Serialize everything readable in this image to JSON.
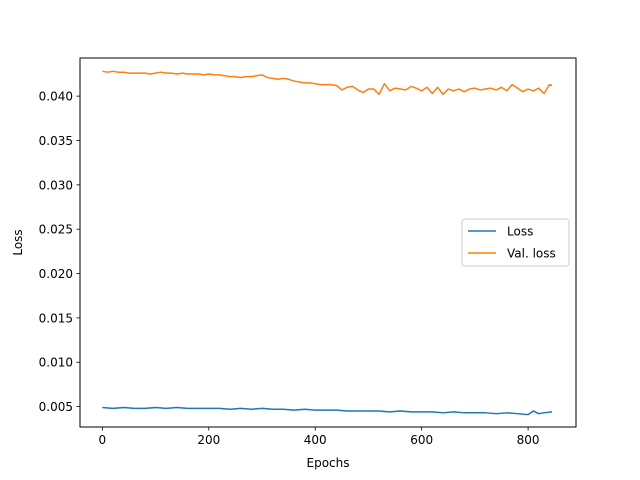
{
  "chart_data": {
    "type": "line",
    "title": "",
    "xlabel": "Epochs",
    "ylabel": "Loss",
    "xlim": [
      -42,
      890
    ],
    "ylim": [
      0.0027,
      0.0443
    ],
    "xticks": [
      0,
      200,
      400,
      600,
      800
    ],
    "xtick_labels": [
      "0",
      "200",
      "400",
      "600",
      "800"
    ],
    "yticks": [
      0.005,
      0.01,
      0.015,
      0.02,
      0.025,
      0.03,
      0.035,
      0.04
    ],
    "ytick_labels": [
      "0.005",
      "0.010",
      "0.015",
      "0.020",
      "0.025",
      "0.030",
      "0.035",
      "0.040"
    ],
    "grid": false,
    "legend_position": "center-right",
    "series": [
      {
        "name": "Loss",
        "color": "#1f77b4",
        "x": [
          0,
          20,
          40,
          60,
          80,
          100,
          120,
          140,
          160,
          180,
          200,
          220,
          240,
          260,
          280,
          300,
          320,
          340,
          360,
          380,
          400,
          420,
          440,
          460,
          480,
          500,
          520,
          540,
          560,
          580,
          600,
          620,
          640,
          660,
          680,
          700,
          720,
          740,
          760,
          780,
          800,
          810,
          820,
          830,
          845
        ],
        "y": [
          0.0049,
          0.0048,
          0.0049,
          0.0048,
          0.0048,
          0.0049,
          0.0048,
          0.0049,
          0.0048,
          0.0048,
          0.0048,
          0.0048,
          0.0047,
          0.0048,
          0.0047,
          0.0048,
          0.0047,
          0.0047,
          0.0046,
          0.0047,
          0.0046,
          0.0046,
          0.0046,
          0.0045,
          0.0045,
          0.0045,
          0.0045,
          0.0044,
          0.0045,
          0.0044,
          0.0044,
          0.0044,
          0.0043,
          0.0044,
          0.0043,
          0.0043,
          0.0043,
          0.0042,
          0.0043,
          0.0042,
          0.0041,
          0.0045,
          0.0042,
          0.0043,
          0.0044
        ]
      },
      {
        "name": "Val. loss",
        "color": "#ff7f0e",
        "x": [
          0,
          10,
          20,
          30,
          40,
          50,
          60,
          70,
          80,
          90,
          100,
          110,
          120,
          130,
          140,
          150,
          160,
          170,
          180,
          190,
          200,
          210,
          220,
          230,
          240,
          250,
          260,
          270,
          280,
          290,
          300,
          310,
          320,
          330,
          340,
          350,
          360,
          370,
          380,
          390,
          400,
          410,
          420,
          430,
          440,
          450,
          460,
          470,
          480,
          490,
          500,
          510,
          520,
          530,
          540,
          550,
          560,
          570,
          580,
          590,
          600,
          610,
          620,
          630,
          640,
          650,
          660,
          670,
          680,
          690,
          700,
          710,
          720,
          730,
          740,
          750,
          760,
          770,
          780,
          790,
          800,
          810,
          820,
          830,
          840,
          845
        ],
        "y": [
          0.0428,
          0.0427,
          0.0428,
          0.0427,
          0.0427,
          0.0426,
          0.0426,
          0.0426,
          0.0426,
          0.0425,
          0.0426,
          0.0427,
          0.0426,
          0.0426,
          0.0425,
          0.0426,
          0.0425,
          0.0425,
          0.0425,
          0.0424,
          0.0425,
          0.0424,
          0.0424,
          0.0423,
          0.0422,
          0.0422,
          0.0421,
          0.0422,
          0.0422,
          0.0423,
          0.0424,
          0.0421,
          0.042,
          0.0419,
          0.042,
          0.0419,
          0.0417,
          0.0416,
          0.0415,
          0.0415,
          0.0414,
          0.0413,
          0.0413,
          0.0413,
          0.0412,
          0.0407,
          0.041,
          0.0411,
          0.0407,
          0.0404,
          0.0408,
          0.0408,
          0.0402,
          0.0414,
          0.0406,
          0.0409,
          0.0408,
          0.0407,
          0.0411,
          0.0409,
          0.0406,
          0.041,
          0.0403,
          0.041,
          0.0402,
          0.0408,
          0.0406,
          0.0408,
          0.0405,
          0.0408,
          0.0409,
          0.0407,
          0.0408,
          0.0409,
          0.0407,
          0.041,
          0.0406,
          0.0413,
          0.0409,
          0.0405,
          0.0408,
          0.0406,
          0.0409,
          0.0403,
          0.0413,
          0.0412
        ]
      }
    ]
  }
}
